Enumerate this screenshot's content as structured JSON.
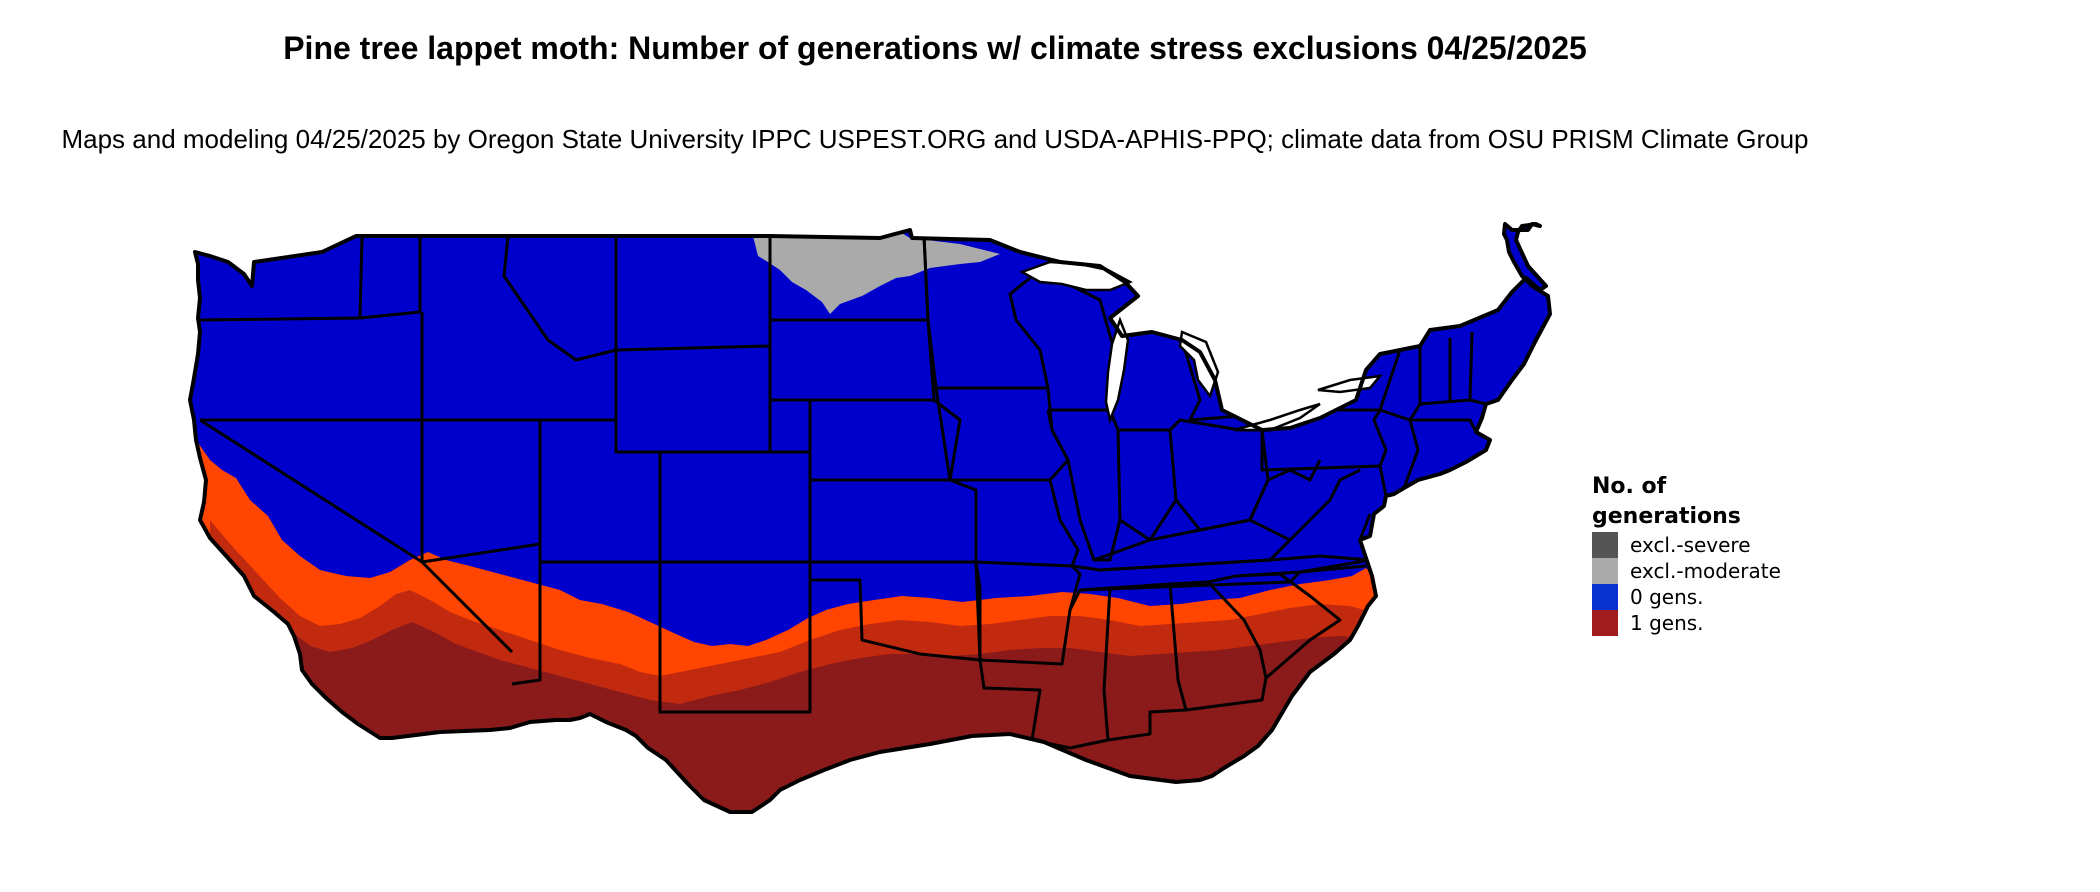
{
  "map": {
    "title": "Pine tree lappet moth: Number of generations w/ climate stress exclusions 04/25/2025",
    "subtitle": "Maps and modeling 04/25/2025 by Oregon State University IPPC USPEST.ORG and USDA-APHIS-PPQ; climate data from OSU PRISM Climate Group",
    "region": "Contiguous United States",
    "colors": {
      "outline": "#000000",
      "zero_gens": "#0000cc",
      "one_gen_dark": "#8b1a1a",
      "one_gen_mid": "#c22a10",
      "one_gen_fringe": "#ff4500",
      "excl_moderate": "#aaaaaa",
      "excl_severe": "#555555",
      "background": "#ffffff"
    }
  },
  "legend": {
    "title": "No. of generations",
    "items": [
      {
        "label": "excl.-severe",
        "color": "#555555"
      },
      {
        "label": "excl.-moderate",
        "color": "#aaaaaa"
      },
      {
        "label": "0 gens.",
        "color": "#0a32d2"
      },
      {
        "label": "1 gens.",
        "color": "#a11d1d"
      }
    ]
  }
}
